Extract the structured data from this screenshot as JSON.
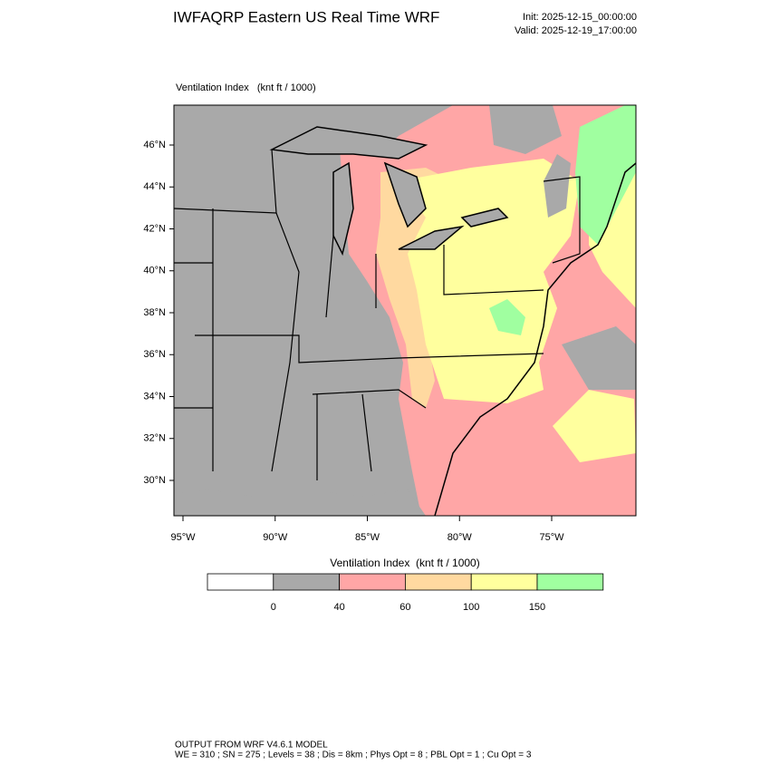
{
  "header": {
    "title": "IWFAQRP Eastern US Real Time WRF",
    "init": "Init: 2025-12-15_00:00:00",
    "valid": "Valid: 2025-12-19_17:00:00"
  },
  "map": {
    "field_label": "Ventilation Index   (knt ft / 1000)",
    "lat_labels": [
      "46°N",
      "44°N",
      "42°N",
      "40°N",
      "38°N",
      "36°N",
      "34°N",
      "32°N",
      "30°N"
    ],
    "lon_labels": [
      "95°W",
      "90°W",
      "85°W",
      "80°W",
      "75°W"
    ]
  },
  "colorbar": {
    "title": "Ventilation Index  (knt ft / 1000)",
    "levels": [
      0,
      40,
      60,
      100,
      150
    ],
    "colors": [
      "#ffffff",
      "#a9a9a9",
      "#ffa6a6",
      "#ffd9a0",
      "#ffff9e",
      "#a0ffa0"
    ]
  },
  "footer": {
    "line1": "OUTPUT FROM WRF V4.6.1 MODEL",
    "line2": "WE = 310 ; SN = 275 ; Levels = 38 ; Dis = 8km ; Phys Opt = 8 ; PBL Opt = 1 ; Cu Opt = 3"
  }
}
